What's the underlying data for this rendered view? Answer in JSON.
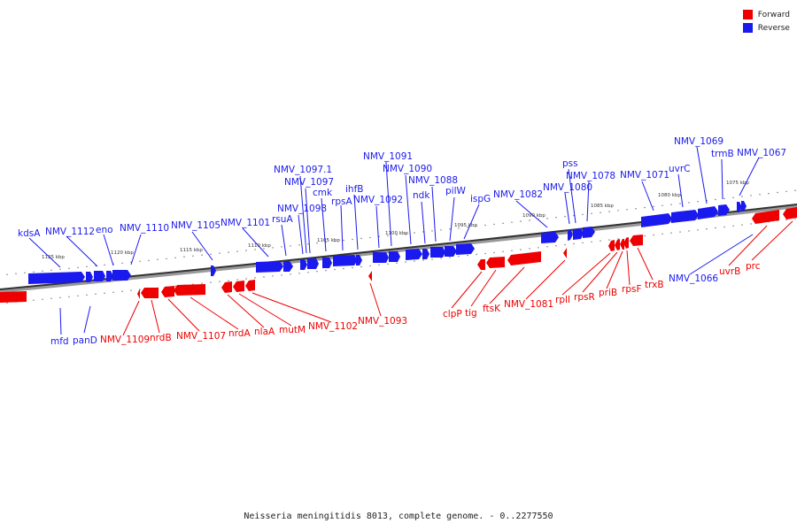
{
  "legend": {
    "forward": {
      "label": "Forward",
      "color": "#ee0000"
    },
    "reverse": {
      "label": "Reverse",
      "color": "#1a1aee"
    }
  },
  "caption": "Neisseria meningitidis 8013, complete genome. - 0..2277550",
  "scale_labels": [
    "1125 kbp",
    "1120 kbp",
    "1115 kbp",
    "1110 kbp",
    "1105 kbp",
    "1100 kbp",
    "1095 kbp",
    "1090 kbp",
    "1085 kbp",
    "1080 kbp",
    "1075 kbp"
  ],
  "genes_reverse": [
    "kdsA",
    "NMV_1112",
    "eno",
    "NMV_1110",
    "NMV_1105",
    "NMV_1101",
    "rsuA",
    "NMV_1098",
    "NMV_1097",
    "NMV_1097.1",
    "cmk",
    "rpsA",
    "ihfB",
    "NMV_1092",
    "NMV_1091",
    "NMV_1090",
    "ndk",
    "NMV_1088",
    "pilW",
    "ispG",
    "NMV_1082",
    "NMV_1080",
    "pss",
    "NMV_1078",
    "NMV_1071",
    "uvrC",
    "NMV_1069",
    "trmB",
    "NMV_1067",
    "mfd",
    "panD",
    "NMV_1066"
  ],
  "genes_forward": [
    "NMV_1109",
    "nrdB",
    "NMV_1107",
    "nrdA",
    "nlaA",
    "mutM",
    "NMV_1102",
    "NMV_1093",
    "clpP",
    "tig",
    "ftsK",
    "NMV_1081",
    "rplI",
    "rpsR",
    "priB",
    "rpsF",
    "trxB",
    "uvrB",
    "prc"
  ]
}
